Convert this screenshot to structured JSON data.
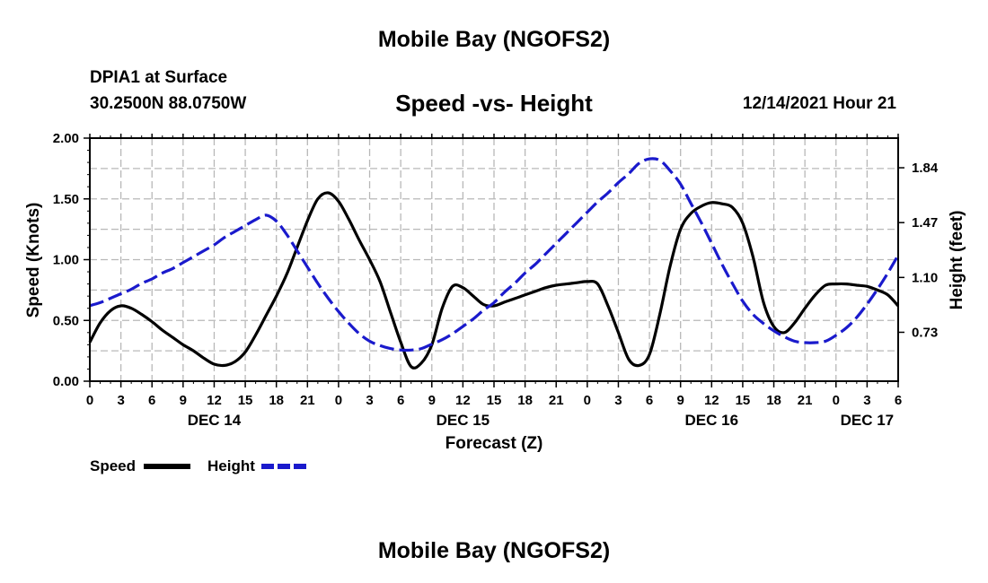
{
  "title": "Mobile Bay (NGOFS2)",
  "station": "DPIA1 at Surface",
  "coordinates": "30.2500N  88.0750W",
  "timestamp": "12/14/2021 Hour 21",
  "bottom_title": "Mobile Bay (NGOFS2)",
  "colors": {
    "speed": "#000000",
    "height": "#1a1acc",
    "grid": "#b8b8b8"
  },
  "chart_data": {
    "type": "line",
    "title": "Speed -vs- Height",
    "xlabel": "Forecast (Z)",
    "ylabel_left": "Speed (Knots)",
    "ylabel_right": "Height (feet)",
    "x_range_hours": [
      0,
      78
    ],
    "ylim_left": [
      0,
      2.0
    ],
    "ylim_right": [
      0.4,
      2.04
    ],
    "y_ticks_left": [
      "0.00",
      "0.50",
      "1.00",
      "1.50",
      "2.00"
    ],
    "y_ticks_right": [
      "0.73",
      "1.10",
      "1.47",
      "1.84"
    ],
    "x_tick_labels": [
      "0",
      "3",
      "6",
      "9",
      "12",
      "15",
      "18",
      "21",
      "0",
      "3",
      "6",
      "9",
      "12",
      "15",
      "18",
      "21",
      "0",
      "3",
      "6",
      "9",
      "12",
      "15",
      "18",
      "21",
      "0",
      "3",
      "6"
    ],
    "date_labels": [
      {
        "label": "DEC 14",
        "hour": 12
      },
      {
        "label": "DEC 15",
        "hour": 36
      },
      {
        "label": "DEC 16",
        "hour": 60
      },
      {
        "label": "DEC 17",
        "hour": 75
      }
    ],
    "series": [
      {
        "name": "Speed",
        "axis": "left",
        "style": "solid",
        "x": [
          0,
          1,
          2,
          3,
          4,
          5,
          6,
          7,
          8,
          9,
          10,
          11,
          12,
          13,
          14,
          15,
          16,
          17,
          18,
          19,
          20,
          21,
          22,
          23,
          24,
          25,
          26,
          27,
          28,
          29,
          30,
          31,
          32,
          33,
          34,
          35,
          36,
          37,
          38,
          39,
          40,
          41,
          42,
          43,
          44,
          45,
          46,
          47,
          48,
          49,
          50,
          51,
          52,
          53,
          54,
          55,
          56,
          57,
          58,
          59,
          60,
          61,
          62,
          63,
          64,
          65,
          66,
          67,
          68,
          69,
          70,
          71,
          72,
          73,
          74,
          75,
          76,
          77,
          78
        ],
        "values": [
          0.32,
          0.48,
          0.58,
          0.62,
          0.6,
          0.55,
          0.49,
          0.42,
          0.36,
          0.3,
          0.25,
          0.19,
          0.14,
          0.13,
          0.16,
          0.24,
          0.38,
          0.54,
          0.7,
          0.88,
          1.1,
          1.32,
          1.5,
          1.55,
          1.48,
          1.33,
          1.16,
          1.0,
          0.82,
          0.57,
          0.32,
          0.12,
          0.15,
          0.3,
          0.6,
          0.78,
          0.77,
          0.7,
          0.63,
          0.62,
          0.65,
          0.68,
          0.71,
          0.74,
          0.77,
          0.79,
          0.8,
          0.81,
          0.82,
          0.8,
          0.62,
          0.4,
          0.18,
          0.13,
          0.22,
          0.55,
          0.95,
          1.25,
          1.38,
          1.44,
          1.47,
          1.46,
          1.43,
          1.3,
          1.02,
          0.65,
          0.45,
          0.4,
          0.48,
          0.6,
          0.71,
          0.79,
          0.8,
          0.8,
          0.79,
          0.78,
          0.75,
          0.71,
          0.62
        ]
      },
      {
        "name": "Height",
        "axis": "right",
        "style": "dashed",
        "x": [
          0,
          1,
          2,
          3,
          4,
          5,
          6,
          7,
          8,
          9,
          10,
          11,
          12,
          13,
          14,
          15,
          16,
          17,
          18,
          19,
          20,
          21,
          22,
          23,
          24,
          25,
          26,
          27,
          28,
          29,
          30,
          31,
          32,
          33,
          34,
          35,
          36,
          37,
          38,
          39,
          40,
          41,
          42,
          43,
          44,
          45,
          46,
          47,
          48,
          49,
          50,
          51,
          52,
          53,
          54,
          55,
          56,
          57,
          58,
          59,
          60,
          61,
          62,
          63,
          64,
          65,
          66,
          67,
          68,
          69,
          70,
          71,
          72,
          73,
          74,
          75,
          76,
          77,
          78
        ],
        "values": [
          0.91,
          0.93,
          0.96,
          0.99,
          1.02,
          1.06,
          1.09,
          1.13,
          1.16,
          1.2,
          1.24,
          1.28,
          1.32,
          1.37,
          1.41,
          1.45,
          1.49,
          1.52,
          1.48,
          1.39,
          1.28,
          1.17,
          1.06,
          0.96,
          0.87,
          0.79,
          0.72,
          0.67,
          0.64,
          0.62,
          0.61,
          0.61,
          0.62,
          0.65,
          0.68,
          0.72,
          0.77,
          0.82,
          0.88,
          0.93,
          1.0,
          1.06,
          1.13,
          1.19,
          1.26,
          1.33,
          1.4,
          1.47,
          1.54,
          1.61,
          1.67,
          1.74,
          1.8,
          1.87,
          1.9,
          1.89,
          1.82,
          1.73,
          1.6,
          1.47,
          1.33,
          1.19,
          1.06,
          0.94,
          0.85,
          0.79,
          0.74,
          0.7,
          0.67,
          0.66,
          0.66,
          0.67,
          0.71,
          0.76,
          0.83,
          0.92,
          1.02,
          1.13,
          1.25
        ]
      }
    ]
  },
  "legend": [
    {
      "label": "Speed",
      "series": "Speed"
    },
    {
      "label": "Height",
      "series": "Height"
    }
  ]
}
